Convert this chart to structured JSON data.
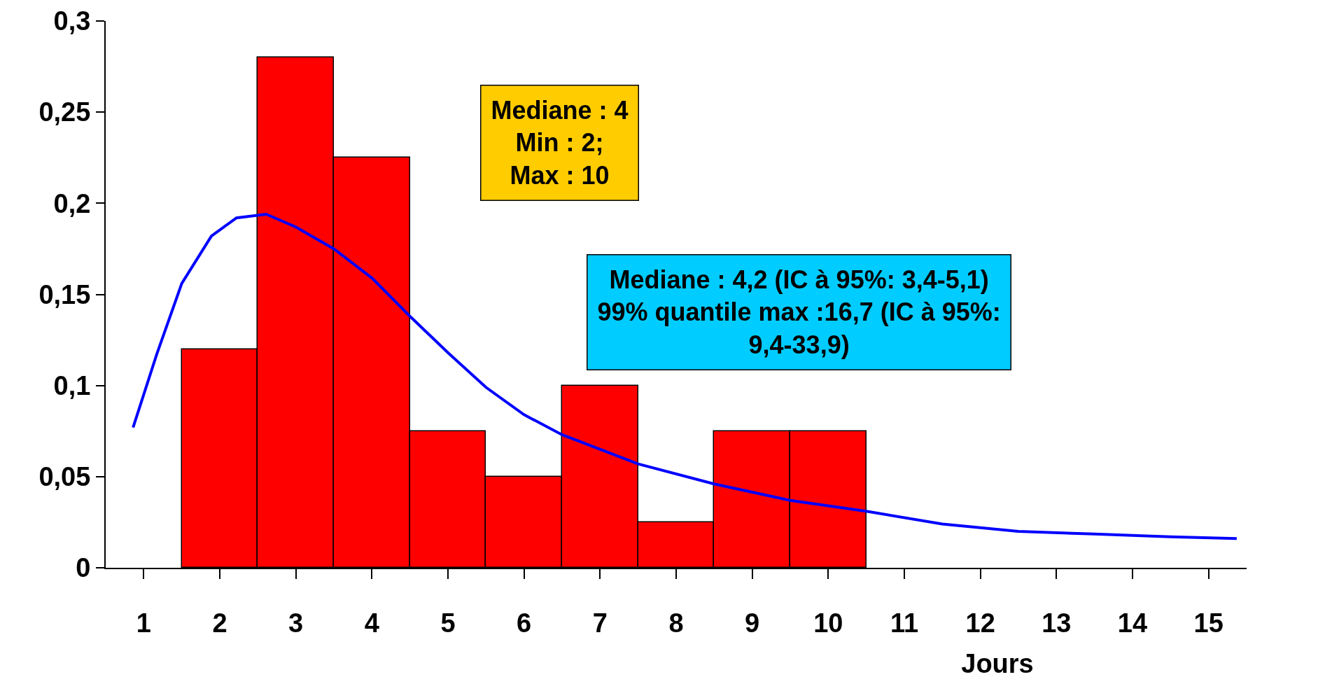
{
  "chart_data": {
    "type": "bar",
    "xlabel": "Jours",
    "x": [
      2,
      3,
      4,
      5,
      6,
      7,
      8,
      9,
      10
    ],
    "values": [
      0.12,
      0.28,
      0.225,
      0.075,
      0.05,
      0.1,
      0.025,
      0.075,
      0.075
    ],
    "color": "#ff0000",
    "series": [
      {
        "type": "line",
        "color": "#0000ff",
        "x": [
          0.86,
          1.17,
          1.5,
          1.89,
          2.22,
          2.61,
          3.0,
          3.5,
          4.0,
          4.5,
          5.0,
          5.5,
          6.0,
          6.5,
          7.5,
          8.5,
          9.5,
          10.5,
          11.5,
          12.5,
          13.5,
          14.5,
          15.37
        ],
        "values": [
          0.077,
          0.117,
          0.156,
          0.182,
          0.192,
          0.194,
          0.187,
          0.175,
          0.159,
          0.138,
          0.118,
          0.099,
          0.084,
          0.073,
          0.057,
          0.046,
          0.037,
          0.031,
          0.024,
          0.02,
          0.0185,
          0.017,
          0.016
        ]
      }
    ],
    "xlim": [
      0.5,
      15.5
    ],
    "xticks": [
      1,
      2,
      3,
      4,
      5,
      6,
      7,
      8,
      9,
      10,
      11,
      12,
      13,
      14,
      15
    ],
    "ylim": [
      0,
      0.3
    ],
    "yticks": [
      0,
      {
        "value": 0.05,
        "label": "0,05"
      },
      {
        "value": 0.1,
        "label": "0,1"
      },
      {
        "value": 0.15,
        "label": "0,15"
      },
      {
        "value": 0.2,
        "label": "0,2"
      },
      {
        "value": 0.25,
        "label": "0,25"
      },
      {
        "value": 0.3,
        "label": "0,3"
      }
    ],
    "grid": false,
    "line_style": "solid",
    "annotations": [
      "Mediane : 4\nMin : 2;\nMax : 10",
      "Mediane : 4,2 (IC à 95%: 3,4-5,1)\n99% quantile max :16,7 (IC à 95%:\n9,4-33,9)"
    ]
  }
}
